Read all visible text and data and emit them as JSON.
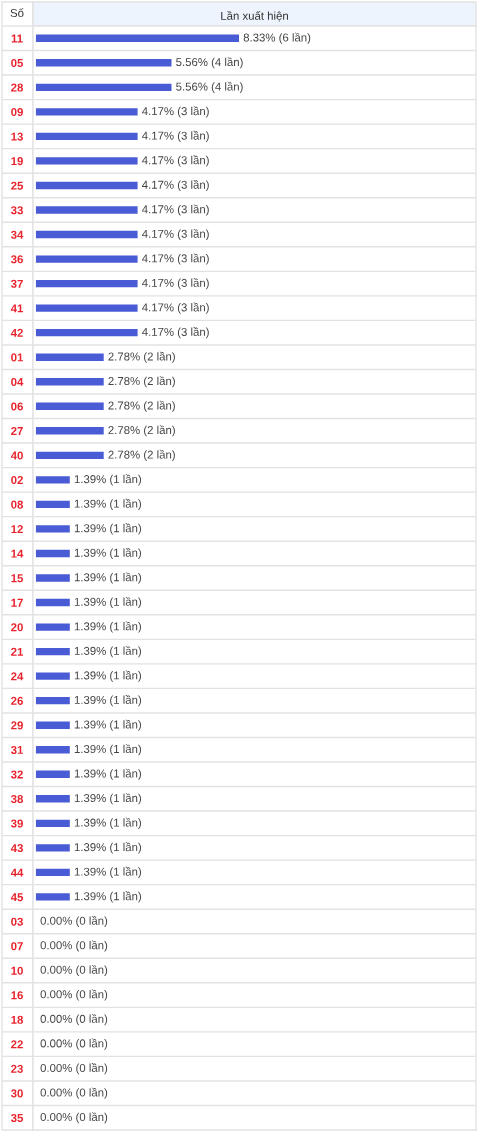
{
  "chart_data": {
    "type": "bar",
    "orientation": "horizontal",
    "xlabel": "Lần xuất hiện",
    "ylabel": "Số",
    "categories": [
      "11",
      "05",
      "28",
      "09",
      "13",
      "19",
      "25",
      "33",
      "34",
      "36",
      "37",
      "41",
      "42",
      "01",
      "04",
      "06",
      "27",
      "40",
      "02",
      "08",
      "12",
      "14",
      "15",
      "17",
      "20",
      "21",
      "24",
      "26",
      "29",
      "31",
      "32",
      "38",
      "39",
      "43",
      "44",
      "45",
      "03",
      "07",
      "10",
      "16",
      "18",
      "22",
      "23",
      "30",
      "35"
    ],
    "values": [
      8.33,
      5.56,
      5.56,
      4.17,
      4.17,
      4.17,
      4.17,
      4.17,
      4.17,
      4.17,
      4.17,
      4.17,
      4.17,
      2.78,
      2.78,
      2.78,
      2.78,
      2.78,
      1.39,
      1.39,
      1.39,
      1.39,
      1.39,
      1.39,
      1.39,
      1.39,
      1.39,
      1.39,
      1.39,
      1.39,
      1.39,
      1.39,
      1.39,
      1.39,
      1.39,
      1.39,
      0,
      0,
      0,
      0,
      0,
      0,
      0,
      0,
      0
    ],
    "value_labels": [
      "8.33% (6 lần)",
      "5.56% (4 lần)",
      "5.56% (4 lần)",
      "4.17% (3 lần)",
      "4.17% (3 lần)",
      "4.17% (3 lần)",
      "4.17% (3 lần)",
      "4.17% (3 lần)",
      "4.17% (3 lần)",
      "4.17% (3 lần)",
      "4.17% (3 lần)",
      "4.17% (3 lần)",
      "4.17% (3 lần)",
      "2.78% (2 lần)",
      "2.78% (2 lần)",
      "2.78% (2 lần)",
      "2.78% (2 lần)",
      "2.78% (2 lần)",
      "1.39% (1 lần)",
      "1.39% (1 lần)",
      "1.39% (1 lần)",
      "1.39% (1 lần)",
      "1.39% (1 lần)",
      "1.39% (1 lần)",
      "1.39% (1 lần)",
      "1.39% (1 lần)",
      "1.39% (1 lần)",
      "1.39% (1 lần)",
      "1.39% (1 lần)",
      "1.39% (1 lần)",
      "1.39% (1 lần)",
      "1.39% (1 lần)",
      "1.39% (1 lần)",
      "1.39% (1 lần)",
      "1.39% (1 lần)",
      "1.39% (1 lần)",
      "0.00% (0 lần)",
      "0.00% (0 lần)",
      "0.00% (0 lần)",
      "0.00% (0 lần)",
      "0.00% (0 lần)",
      "0.00% (0 lần)",
      "0.00% (0 lần)",
      "0.00% (0 lần)",
      "0.00% (0 lần)"
    ],
    "color": "#4a5bd6",
    "xlim": [
      -0.12,
      18.05
    ],
    "tick_labels": "y",
    "grid": "y",
    "legend": false
  }
}
